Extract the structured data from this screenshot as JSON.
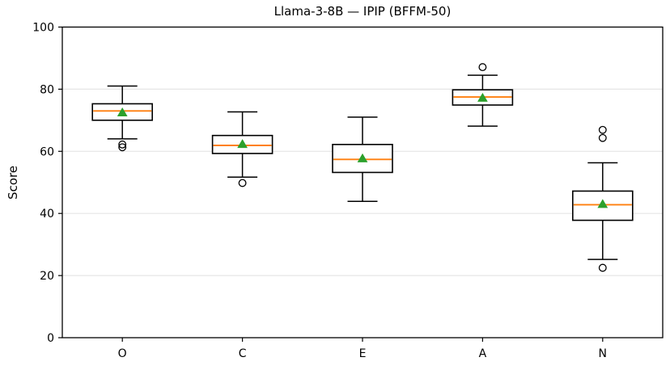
{
  "chart_data": {
    "type": "boxplot",
    "title": "Llama-3-8B — IPIP (BFFM-50)",
    "ylabel": "Score",
    "xlabel": "",
    "categories": [
      "O",
      "C",
      "E",
      "A",
      "N"
    ],
    "ylim": [
      0,
      100
    ],
    "yticks": [
      0,
      20,
      40,
      60,
      80,
      100
    ],
    "grid": "horizontal",
    "legend": "none",
    "colors": {
      "median": "#ff7f0e",
      "mean": "#2ca02c",
      "box_edge": "#000000",
      "box_fill": "#ffffff",
      "grid": "#e6e6e6",
      "outlier_edge": "#000000"
    },
    "boxes": [
      {
        "category": "O",
        "whisker_low": 64.0,
        "q1": 70.0,
        "median": 73.0,
        "q3": 75.3,
        "whisker_high": 81.0,
        "mean": 72.5,
        "outliers": [
          62.2,
          61.3
        ]
      },
      {
        "category": "C",
        "whisker_low": 51.7,
        "q1": 59.3,
        "median": 61.9,
        "q3": 65.1,
        "whisker_high": 72.7,
        "mean": 62.3,
        "outliers": [
          49.8
        ]
      },
      {
        "category": "E",
        "whisker_low": 43.9,
        "q1": 53.2,
        "median": 57.4,
        "q3": 62.2,
        "whisker_high": 71.0,
        "mean": 57.7,
        "outliers": []
      },
      {
        "category": "A",
        "whisker_low": 68.1,
        "q1": 74.9,
        "median": 77.5,
        "q3": 79.8,
        "whisker_high": 84.5,
        "mean": 77.2,
        "outliers": [
          87.1
        ]
      },
      {
        "category": "N",
        "whisker_low": 25.2,
        "q1": 37.8,
        "median": 42.8,
        "q3": 47.2,
        "whisker_high": 56.3,
        "mean": 43.0,
        "outliers": [
          66.9,
          64.3,
          22.5
        ]
      }
    ]
  }
}
